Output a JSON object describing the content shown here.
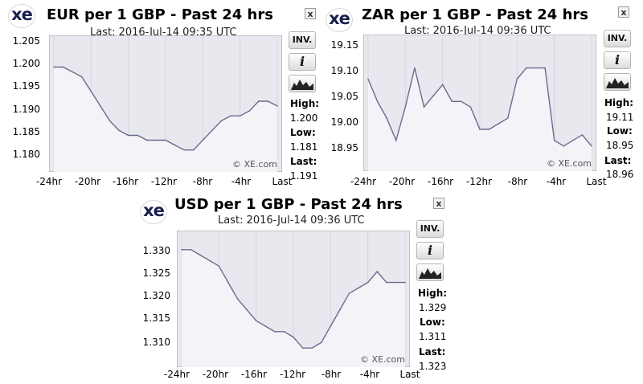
{
  "logo_text": "xe",
  "close_label": "x",
  "buttons": {
    "inverse": "INV.",
    "info": "i"
  },
  "icons": {
    "close": "close-icon",
    "info": "info-icon",
    "chart_type": "mountain-chart-icon"
  },
  "colors": {
    "plot_bg": "#e8e8ef",
    "line": "#6b6b8f",
    "fill": "#f4f4f8"
  },
  "stat_labels": {
    "high": "High:",
    "low": "Low:",
    "last": "Last:"
  },
  "credit": "© XE.com",
  "x_ticks": [
    "-24hr",
    "-20hr",
    "-16hr",
    "-12hr",
    "-8hr",
    "-4hr",
    "Last"
  ],
  "widgets": [
    {
      "title": "EUR per 1 GBP - Past 24 hrs",
      "updated": "Last: 2016-Jul-14 09:35 UTC",
      "high": "1.200",
      "low": "1.181",
      "last": "1.191",
      "y_ticks": [
        "1.205",
        "1.200",
        "1.195",
        "1.190",
        "1.185",
        "1.180"
      ]
    },
    {
      "title": "ZAR per 1 GBP - Past 24 hrs",
      "updated": "Last: 2016-Jul-14 09:36 UTC",
      "high": "19.11",
      "low": "18.95",
      "last": "18.96",
      "y_ticks": [
        "19.15",
        "19.10",
        "19.05",
        "19.00",
        "18.95"
      ]
    },
    {
      "title": "USD per 1 GBP - Past 24 hrs",
      "updated": "Last: 2016-Jul-14 09:36 UTC",
      "high": "1.329",
      "low": "1.311",
      "last": "1.323",
      "y_ticks": [
        "1.330",
        "1.325",
        "1.320",
        "1.315",
        "1.310"
      ]
    }
  ],
  "chart_data": [
    {
      "type": "area",
      "title": "EUR per 1 GBP - Past 24 hrs",
      "x_unit": "hours before last",
      "ylim": [
        1.1775,
        1.2055
      ],
      "x": [
        -24,
        -23,
        -22,
        -21,
        -20,
        -19,
        -18,
        -17,
        -16,
        -15,
        -14,
        -13,
        -12,
        -11,
        -10,
        -9,
        -8,
        -7,
        -6,
        -5,
        -4,
        -3,
        -2,
        -1,
        0
      ],
      "y": [
        1.199,
        1.199,
        1.198,
        1.197,
        1.194,
        1.191,
        1.188,
        1.186,
        1.185,
        1.185,
        1.184,
        1.184,
        1.184,
        1.183,
        1.182,
        1.182,
        1.184,
        1.186,
        1.188,
        1.189,
        1.189,
        1.19,
        1.192,
        1.192,
        1.191
      ]
    },
    {
      "type": "area",
      "title": "ZAR per 1 GBP - Past 24 hrs",
      "x_unit": "hours before last",
      "ylim": [
        18.915,
        19.16
      ],
      "x": [
        -24,
        -23,
        -22,
        -21,
        -20,
        -19,
        -18,
        -17,
        -16,
        -15,
        -14,
        -13,
        -12,
        -11,
        -10,
        -9,
        -8,
        -7,
        -6,
        -5,
        -4,
        -3,
        -2,
        -1,
        0
      ],
      "y": [
        19.08,
        19.04,
        19.01,
        18.97,
        19.03,
        19.1,
        19.03,
        19.05,
        19.07,
        19.04,
        19.04,
        19.03,
        18.99,
        18.99,
        19.0,
        19.01,
        19.08,
        19.1,
        19.1,
        19.1,
        18.97,
        18.96,
        18.97,
        18.98,
        18.96
      ]
    },
    {
      "type": "area",
      "title": "USD per 1 GBP - Past 24 hrs",
      "x_unit": "hours before last",
      "ylim": [
        1.3075,
        1.3325
      ],
      "x": [
        -24,
        -23,
        -22,
        -21,
        -20,
        -19,
        -18,
        -17,
        -16,
        -15,
        -14,
        -13,
        -12,
        -11,
        -10,
        -9,
        -8,
        -7,
        -6,
        -5,
        -4,
        -3,
        -2,
        -1,
        0
      ],
      "y": [
        1.329,
        1.329,
        1.328,
        1.327,
        1.326,
        1.323,
        1.32,
        1.318,
        1.316,
        1.315,
        1.314,
        1.314,
        1.313,
        1.311,
        1.311,
        1.312,
        1.315,
        1.318,
        1.321,
        1.322,
        1.323,
        1.325,
        1.323,
        1.323,
        1.323
      ]
    }
  ]
}
